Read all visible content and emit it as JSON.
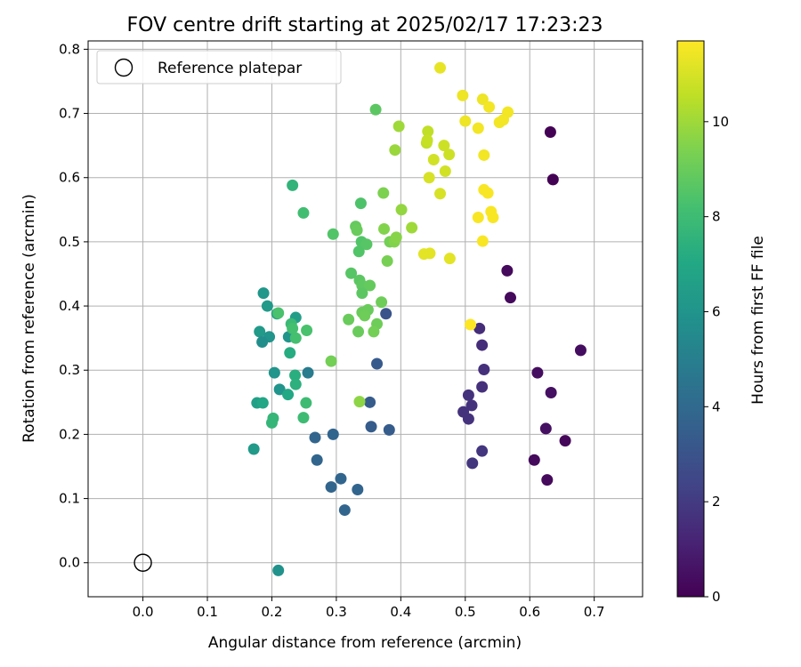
{
  "chart_data": {
    "type": "scatter",
    "title": "FOV centre drift starting at 2025/02/17 17:23:23",
    "xlabel": "Angular distance from reference (arcmin)",
    "ylabel": "Rotation from reference (arcmin)",
    "xlim": [
      -0.085,
      0.775
    ],
    "ylim": [
      -0.053,
      0.813
    ],
    "xticks": [
      "0.0",
      "0.1",
      "0.2",
      "0.3",
      "0.4",
      "0.5",
      "0.6",
      "0.7"
    ],
    "yticks": [
      "0.0",
      "0.1",
      "0.2",
      "0.3",
      "0.4",
      "0.5",
      "0.6",
      "0.7",
      "0.8"
    ],
    "grid": true,
    "legend": {
      "placement": "top-left",
      "entries": [
        "Reference platepar"
      ]
    },
    "reference_point": {
      "x": 0.0,
      "y": 0.0
    },
    "colorbar": {
      "label": "Hours from first FF file",
      "colormap": "viridis",
      "range": [
        0,
        11.7
      ],
      "ticks": [
        "0",
        "2",
        "4",
        "6",
        "8",
        "10"
      ]
    },
    "points": [
      {
        "x": 0.632,
        "y": 0.671,
        "h": 0.05
      },
      {
        "x": 0.636,
        "y": 0.597,
        "h": 0.05
      },
      {
        "x": 0.565,
        "y": 0.455,
        "h": 0.3
      },
      {
        "x": 0.57,
        "y": 0.413,
        "h": 0.3
      },
      {
        "x": 0.679,
        "y": 0.331,
        "h": 0.4
      },
      {
        "x": 0.612,
        "y": 0.296,
        "h": 0.4
      },
      {
        "x": 0.633,
        "y": 0.265,
        "h": 0.5
      },
      {
        "x": 0.625,
        "y": 0.209,
        "h": 0.5
      },
      {
        "x": 0.655,
        "y": 0.19,
        "h": 0.2
      },
      {
        "x": 0.607,
        "y": 0.16,
        "h": 0.3
      },
      {
        "x": 0.627,
        "y": 0.129,
        "h": 0.3
      },
      {
        "x": 0.522,
        "y": 0.365,
        "h": 1.5
      },
      {
        "x": 0.526,
        "y": 0.339,
        "h": 1.5
      },
      {
        "x": 0.529,
        "y": 0.301,
        "h": 1.6
      },
      {
        "x": 0.526,
        "y": 0.274,
        "h": 1.6
      },
      {
        "x": 0.505,
        "y": 0.261,
        "h": 1.7
      },
      {
        "x": 0.51,
        "y": 0.245,
        "h": 1.7
      },
      {
        "x": 0.497,
        "y": 0.235,
        "h": 1.7
      },
      {
        "x": 0.505,
        "y": 0.224,
        "h": 1.7
      },
      {
        "x": 0.526,
        "y": 0.174,
        "h": 1.8
      },
      {
        "x": 0.511,
        "y": 0.155,
        "h": 1.8
      },
      {
        "x": 0.377,
        "y": 0.388,
        "h": 3.0
      },
      {
        "x": 0.363,
        "y": 0.31,
        "h": 3.3
      },
      {
        "x": 0.352,
        "y": 0.25,
        "h": 3.4
      },
      {
        "x": 0.354,
        "y": 0.212,
        "h": 3.4
      },
      {
        "x": 0.382,
        "y": 0.207,
        "h": 3.4
      },
      {
        "x": 0.295,
        "y": 0.2,
        "h": 3.8
      },
      {
        "x": 0.267,
        "y": 0.195,
        "h": 3.8
      },
      {
        "x": 0.27,
        "y": 0.16,
        "h": 3.8
      },
      {
        "x": 0.307,
        "y": 0.131,
        "h": 3.8
      },
      {
        "x": 0.292,
        "y": 0.118,
        "h": 3.8
      },
      {
        "x": 0.333,
        "y": 0.114,
        "h": 3.8
      },
      {
        "x": 0.313,
        "y": 0.082,
        "h": 3.8
      },
      {
        "x": 0.256,
        "y": 0.296,
        "h": 4.8
      },
      {
        "x": 0.21,
        "y": -0.012,
        "h": 5.9
      },
      {
        "x": 0.187,
        "y": 0.42,
        "h": 6.1
      },
      {
        "x": 0.193,
        "y": 0.4,
        "h": 6.3
      },
      {
        "x": 0.208,
        "y": 0.388,
        "h": 6.7
      },
      {
        "x": 0.237,
        "y": 0.382,
        "h": 6.5
      },
      {
        "x": 0.181,
        "y": 0.36,
        "h": 6.3
      },
      {
        "x": 0.196,
        "y": 0.352,
        "h": 6.0
      },
      {
        "x": 0.185,
        "y": 0.344,
        "h": 5.7
      },
      {
        "x": 0.226,
        "y": 0.352,
        "h": 6.0
      },
      {
        "x": 0.204,
        "y": 0.296,
        "h": 6.0
      },
      {
        "x": 0.212,
        "y": 0.27,
        "h": 6.0
      },
      {
        "x": 0.225,
        "y": 0.262,
        "h": 7.0
      },
      {
        "x": 0.177,
        "y": 0.249,
        "h": 6.6
      },
      {
        "x": 0.186,
        "y": 0.249,
        "h": 6.9
      },
      {
        "x": 0.172,
        "y": 0.177,
        "h": 6.3
      },
      {
        "x": 0.228,
        "y": 0.327,
        "h": 7.2
      },
      {
        "x": 0.236,
        "y": 0.292,
        "h": 7.3
      },
      {
        "x": 0.237,
        "y": 0.278,
        "h": 7.4
      },
      {
        "x": 0.202,
        "y": 0.225,
        "h": 7.7
      },
      {
        "x": 0.2,
        "y": 0.218,
        "h": 7.7
      },
      {
        "x": 0.249,
        "y": 0.226,
        "h": 8.0
      },
      {
        "x": 0.253,
        "y": 0.249,
        "h": 8.0
      },
      {
        "x": 0.232,
        "y": 0.588,
        "h": 7.6
      },
      {
        "x": 0.249,
        "y": 0.545,
        "h": 8.1
      },
      {
        "x": 0.23,
        "y": 0.372,
        "h": 7.9
      },
      {
        "x": 0.237,
        "y": 0.35,
        "h": 8.2
      },
      {
        "x": 0.254,
        "y": 0.362,
        "h": 8.3
      },
      {
        "x": 0.232,
        "y": 0.365,
        "h": 8.2
      },
      {
        "x": 0.21,
        "y": 0.389,
        "h": 8.3
      },
      {
        "x": 0.361,
        "y": 0.706,
        "h": 8.7
      },
      {
        "x": 0.338,
        "y": 0.56,
        "h": 8.4
      },
      {
        "x": 0.295,
        "y": 0.512,
        "h": 8.5
      },
      {
        "x": 0.33,
        "y": 0.524,
        "h": 8.9
      },
      {
        "x": 0.332,
        "y": 0.518,
        "h": 9.0
      },
      {
        "x": 0.339,
        "y": 0.5,
        "h": 8.5
      },
      {
        "x": 0.347,
        "y": 0.496,
        "h": 8.6
      },
      {
        "x": 0.335,
        "y": 0.485,
        "h": 8.5
      },
      {
        "x": 0.323,
        "y": 0.451,
        "h": 8.6
      },
      {
        "x": 0.336,
        "y": 0.44,
        "h": 8.7
      },
      {
        "x": 0.34,
        "y": 0.432,
        "h": 8.8
      },
      {
        "x": 0.352,
        "y": 0.432,
        "h": 8.9
      },
      {
        "x": 0.34,
        "y": 0.42,
        "h": 8.7
      },
      {
        "x": 0.319,
        "y": 0.379,
        "h": 9.0
      },
      {
        "x": 0.34,
        "y": 0.39,
        "h": 9.0
      },
      {
        "x": 0.349,
        "y": 0.394,
        "h": 9.0
      },
      {
        "x": 0.344,
        "y": 0.385,
        "h": 9.1
      },
      {
        "x": 0.363,
        "y": 0.372,
        "h": 9.1
      },
      {
        "x": 0.334,
        "y": 0.36,
        "h": 9.0
      },
      {
        "x": 0.358,
        "y": 0.36,
        "h": 9.2
      },
      {
        "x": 0.292,
        "y": 0.314,
        "h": 9.2
      },
      {
        "x": 0.336,
        "y": 0.251,
        "h": 9.7
      },
      {
        "x": 0.37,
        "y": 0.406,
        "h": 9.1
      },
      {
        "x": 0.373,
        "y": 0.576,
        "h": 9.4
      },
      {
        "x": 0.374,
        "y": 0.52,
        "h": 9.5
      },
      {
        "x": 0.379,
        "y": 0.47,
        "h": 9.3
      },
      {
        "x": 0.383,
        "y": 0.5,
        "h": 9.2
      },
      {
        "x": 0.39,
        "y": 0.5,
        "h": 9.5
      },
      {
        "x": 0.393,
        "y": 0.507,
        "h": 9.6
      },
      {
        "x": 0.401,
        "y": 0.55,
        "h": 9.8
      },
      {
        "x": 0.417,
        "y": 0.522,
        "h": 10.0
      },
      {
        "x": 0.391,
        "y": 0.643,
        "h": 9.9
      },
      {
        "x": 0.397,
        "y": 0.68,
        "h": 10.0
      },
      {
        "x": 0.442,
        "y": 0.672,
        "h": 10.6
      },
      {
        "x": 0.44,
        "y": 0.654,
        "h": 10.6
      },
      {
        "x": 0.441,
        "y": 0.658,
        "h": 10.7
      },
      {
        "x": 0.467,
        "y": 0.65,
        "h": 10.8
      },
      {
        "x": 0.475,
        "y": 0.636,
        "h": 10.8
      },
      {
        "x": 0.451,
        "y": 0.628,
        "h": 10.9
      },
      {
        "x": 0.469,
        "y": 0.61,
        "h": 10.9
      },
      {
        "x": 0.444,
        "y": 0.6,
        "h": 11.0
      },
      {
        "x": 0.461,
        "y": 0.575,
        "h": 11.0
      },
      {
        "x": 0.436,
        "y": 0.481,
        "h": 11.2
      },
      {
        "x": 0.445,
        "y": 0.482,
        "h": 11.2
      },
      {
        "x": 0.476,
        "y": 0.474,
        "h": 11.2
      },
      {
        "x": 0.461,
        "y": 0.771,
        "h": 11.3
      },
      {
        "x": 0.496,
        "y": 0.728,
        "h": 11.4
      },
      {
        "x": 0.527,
        "y": 0.722,
        "h": 11.4
      },
      {
        "x": 0.537,
        "y": 0.71,
        "h": 11.5
      },
      {
        "x": 0.566,
        "y": 0.702,
        "h": 11.5
      },
      {
        "x": 0.553,
        "y": 0.686,
        "h": 11.5
      },
      {
        "x": 0.559,
        "y": 0.69,
        "h": 11.5
      },
      {
        "x": 0.5,
        "y": 0.688,
        "h": 11.4
      },
      {
        "x": 0.52,
        "y": 0.677,
        "h": 11.5
      },
      {
        "x": 0.529,
        "y": 0.635,
        "h": 11.5
      },
      {
        "x": 0.529,
        "y": 0.581,
        "h": 11.6
      },
      {
        "x": 0.535,
        "y": 0.576,
        "h": 11.6
      },
      {
        "x": 0.54,
        "y": 0.547,
        "h": 11.6
      },
      {
        "x": 0.543,
        "y": 0.538,
        "h": 11.6
      },
      {
        "x": 0.52,
        "y": 0.538,
        "h": 11.6
      },
      {
        "x": 0.527,
        "y": 0.501,
        "h": 11.6
      },
      {
        "x": 0.508,
        "y": 0.371,
        "h": 11.7
      }
    ]
  }
}
